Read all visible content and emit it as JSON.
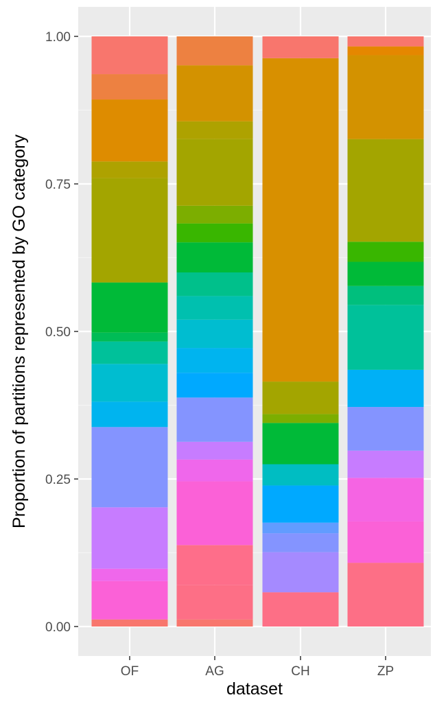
{
  "chart_data": {
    "type": "bar",
    "stacked": true,
    "categories": [
      "OF",
      "AG",
      "CH",
      "ZP"
    ],
    "xlabel": "dataset",
    "ylabel": "Proportion of partitions represented by GO category",
    "ylim": [
      0,
      1
    ],
    "yticks": [
      "0.00",
      "0.25",
      "0.50",
      "0.75",
      "1.00"
    ],
    "grid": true,
    "legend": "none",
    "segments": {
      "OF": [
        {
          "from": 0.0,
          "to": 0.012,
          "color": "#F8766D"
        },
        {
          "from": 0.012,
          "to": 0.077,
          "color": "#FB61D7"
        },
        {
          "from": 0.077,
          "to": 0.098,
          "color": "#EF67EB"
        },
        {
          "from": 0.098,
          "to": 0.202,
          "color": "#C77CFF"
        },
        {
          "from": 0.202,
          "to": 0.338,
          "color": "#8494FF"
        },
        {
          "from": 0.338,
          "to": 0.381,
          "color": "#00B4EF"
        },
        {
          "from": 0.381,
          "to": 0.445,
          "color": "#00BDD0"
        },
        {
          "from": 0.445,
          "to": 0.483,
          "color": "#00C19A"
        },
        {
          "from": 0.483,
          "to": 0.498,
          "color": "#00BC56"
        },
        {
          "from": 0.498,
          "to": 0.583,
          "color": "#00BA38"
        },
        {
          "from": 0.583,
          "to": 0.76,
          "color": "#A3A500"
        },
        {
          "from": 0.76,
          "to": 0.788,
          "color": "#AEA200"
        },
        {
          "from": 0.788,
          "to": 0.893,
          "color": "#DE8C00"
        },
        {
          "from": 0.893,
          "to": 0.936,
          "color": "#ED8141"
        },
        {
          "from": 0.936,
          "to": 1.0,
          "color": "#F8766D"
        }
      ],
      "AG": [
        {
          "from": 0.0,
          "to": 0.012,
          "color": "#F8766D"
        },
        {
          "from": 0.012,
          "to": 0.07,
          "color": "#FD6F86"
        },
        {
          "from": 0.07,
          "to": 0.138,
          "color": "#FE6E8A"
        },
        {
          "from": 0.138,
          "to": 0.246,
          "color": "#FB61D7"
        },
        {
          "from": 0.246,
          "to": 0.283,
          "color": "#EF67EB"
        },
        {
          "from": 0.283,
          "to": 0.313,
          "color": "#C77CFF"
        },
        {
          "from": 0.313,
          "to": 0.388,
          "color": "#8494FF"
        },
        {
          "from": 0.388,
          "to": 0.43,
          "color": "#00A9FF"
        },
        {
          "from": 0.43,
          "to": 0.472,
          "color": "#00B4EF"
        },
        {
          "from": 0.472,
          "to": 0.52,
          "color": "#00BDD0"
        },
        {
          "from": 0.52,
          "to": 0.56,
          "color": "#00C0AF"
        },
        {
          "from": 0.56,
          "to": 0.6,
          "color": "#00C08B"
        },
        {
          "from": 0.6,
          "to": 0.651,
          "color": "#00BA38"
        },
        {
          "from": 0.651,
          "to": 0.683,
          "color": "#39B600"
        },
        {
          "from": 0.683,
          "to": 0.713,
          "color": "#7CAE00"
        },
        {
          "from": 0.713,
          "to": 0.826,
          "color": "#A3A500"
        },
        {
          "from": 0.826,
          "to": 0.856,
          "color": "#AEA200"
        },
        {
          "from": 0.856,
          "to": 0.951,
          "color": "#D39200"
        },
        {
          "from": 0.951,
          "to": 1.0,
          "color": "#ED8141"
        }
      ],
      "CH": [
        {
          "from": 0.0,
          "to": 0.058,
          "color": "#FD6F86"
        },
        {
          "from": 0.058,
          "to": 0.126,
          "color": "#A58AFF"
        },
        {
          "from": 0.126,
          "to": 0.158,
          "color": "#8494FF"
        },
        {
          "from": 0.158,
          "to": 0.176,
          "color": "#619CFF"
        },
        {
          "from": 0.176,
          "to": 0.239,
          "color": "#00A9FF"
        },
        {
          "from": 0.239,
          "to": 0.275,
          "color": "#00BDC2"
        },
        {
          "from": 0.275,
          "to": 0.345,
          "color": "#00BA38"
        },
        {
          "from": 0.345,
          "to": 0.36,
          "color": "#7CAE00"
        },
        {
          "from": 0.36,
          "to": 0.415,
          "color": "#A3A500"
        },
        {
          "from": 0.415,
          "to": 0.963,
          "color": "#D89000"
        },
        {
          "from": 0.963,
          "to": 1.0,
          "color": "#F8766D"
        }
      ],
      "ZP": [
        {
          "from": 0.0,
          "to": 0.108,
          "color": "#FD6F86"
        },
        {
          "from": 0.108,
          "to": 0.178,
          "color": "#FB61D7"
        },
        {
          "from": 0.178,
          "to": 0.252,
          "color": "#F564E3"
        },
        {
          "from": 0.252,
          "to": 0.298,
          "color": "#C77CFF"
        },
        {
          "from": 0.298,
          "to": 0.372,
          "color": "#8494FF"
        },
        {
          "from": 0.372,
          "to": 0.435,
          "color": "#00B0F6"
        },
        {
          "from": 0.435,
          "to": 0.545,
          "color": "#00C19A"
        },
        {
          "from": 0.545,
          "to": 0.577,
          "color": "#00BF7D"
        },
        {
          "from": 0.577,
          "to": 0.618,
          "color": "#00BA38"
        },
        {
          "from": 0.618,
          "to": 0.652,
          "color": "#39B600"
        },
        {
          "from": 0.652,
          "to": 0.826,
          "color": "#A3A500"
        },
        {
          "from": 0.826,
          "to": 0.968,
          "color": "#D39200"
        },
        {
          "from": 0.968,
          "to": 0.983,
          "color": "#E58700"
        },
        {
          "from": 0.983,
          "to": 1.0,
          "color": "#F8766D"
        }
      ]
    }
  }
}
